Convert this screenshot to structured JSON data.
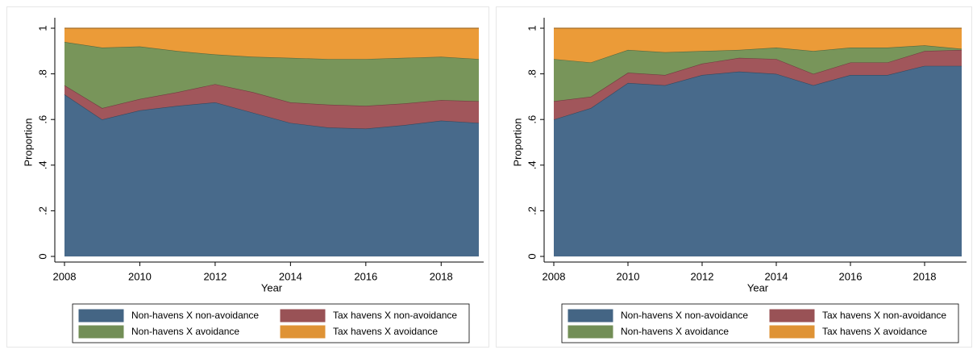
{
  "chart_data": [
    {
      "type": "area",
      "stacked": true,
      "xlabel": "Year",
      "ylabel": "Proportion",
      "x": [
        2008,
        2009,
        2010,
        2011,
        2012,
        2013,
        2014,
        2015,
        2016,
        2017,
        2018,
        2019
      ],
      "xlim": [
        2008,
        2019
      ],
      "xticks": [
        2008,
        2010,
        2012,
        2014,
        2016,
        2018
      ],
      "ylim": [
        0,
        1
      ],
      "yticks": [
        0,
        {
          "value": 0.2,
          "label": ".2"
        },
        {
          "value": 0.4,
          "label": ".4"
        },
        {
          "value": 0.6,
          "label": ".6"
        },
        {
          "value": 0.8,
          "label": ".8"
        },
        1
      ],
      "grid": true,
      "series": [
        {
          "name": "Non-havens X non-avoidance",
          "color": "#486a8b",
          "values": [
            0.71,
            0.6,
            0.64,
            0.66,
            0.675,
            0.63,
            0.585,
            0.565,
            0.56,
            0.575,
            0.595,
            0.585
          ]
        },
        {
          "name": "Tax havens X non-avoidance",
          "color": "#a1565b",
          "values": [
            0.04,
            0.05,
            0.05,
            0.06,
            0.08,
            0.09,
            0.09,
            0.1,
            0.1,
            0.095,
            0.09,
            0.095
          ]
        },
        {
          "name": "Non-havens X avoidance",
          "color": "#78955a",
          "values": [
            0.19,
            0.265,
            0.23,
            0.18,
            0.13,
            0.155,
            0.195,
            0.2,
            0.205,
            0.2,
            0.19,
            0.185
          ]
        },
        {
          "name": "Tax havens X avoidance",
          "color": "#eb9b38",
          "values": [
            0.06,
            0.085,
            0.08,
            0.1,
            0.115,
            0.125,
            0.13,
            0.135,
            0.135,
            0.13,
            0.125,
            0.135
          ]
        }
      ]
    },
    {
      "type": "area",
      "stacked": true,
      "xlabel": "Year",
      "ylabel": "Proportion",
      "x": [
        2008,
        2009,
        2010,
        2011,
        2012,
        2013,
        2014,
        2015,
        2016,
        2017,
        2018,
        2019
      ],
      "xlim": [
        2008,
        2019
      ],
      "xticks": [
        2008,
        2010,
        2012,
        2014,
        2016,
        2018
      ],
      "ylim": [
        0,
        1
      ],
      "yticks": [
        0,
        {
          "value": 0.2,
          "label": ".2"
        },
        {
          "value": 0.4,
          "label": ".4"
        },
        {
          "value": 0.6,
          "label": ".6"
        },
        {
          "value": 0.8,
          "label": ".8"
        },
        1
      ],
      "grid": true,
      "series": [
        {
          "name": "Non-havens X non-avoidance",
          "color": "#486a8b",
          "values": [
            0.6,
            0.65,
            0.76,
            0.75,
            0.795,
            0.81,
            0.8,
            0.75,
            0.795,
            0.795,
            0.835,
            0.835
          ]
        },
        {
          "name": "Tax havens X non-avoidance",
          "color": "#a1565b",
          "values": [
            0.08,
            0.05,
            0.045,
            0.045,
            0.05,
            0.06,
            0.065,
            0.05,
            0.055,
            0.055,
            0.065,
            0.07
          ]
        },
        {
          "name": "Non-havens X avoidance",
          "color": "#78955a",
          "values": [
            0.185,
            0.15,
            0.1,
            0.1,
            0.055,
            0.035,
            0.05,
            0.1,
            0.065,
            0.065,
            0.025,
            0.005
          ]
        },
        {
          "name": "Tax havens X avoidance",
          "color": "#eb9b38",
          "values": [
            0.135,
            0.15,
            0.095,
            0.105,
            0.1,
            0.095,
            0.085,
            0.1,
            0.085,
            0.085,
            0.075,
            0.09
          ]
        }
      ]
    }
  ]
}
